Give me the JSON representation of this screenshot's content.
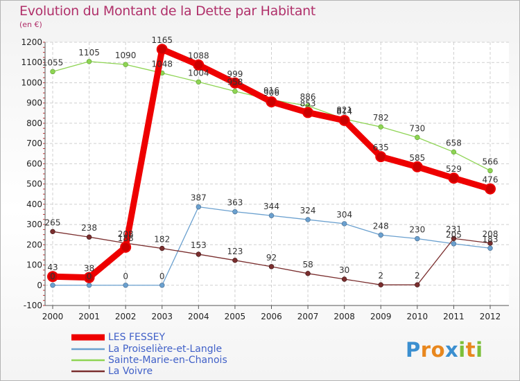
{
  "title": "Evolution du Montant de la Dette par Habitant",
  "subtitle": "(en €)",
  "logo": {
    "letters": [
      "P",
      "r",
      "o",
      "x",
      "i",
      "t",
      "i"
    ],
    "colors": [
      "#3b8fd0",
      "#e8871e",
      "#e8871e",
      "#3b8fd0",
      "#7cbf3a",
      "#e8871e",
      "#7cbf3a"
    ]
  },
  "chart_data": {
    "type": "line",
    "title": "Evolution du Montant de la Dette par Habitant",
    "ylabel": "(en €)",
    "x": [
      "2000",
      "2001",
      "2002",
      "2003",
      "2004",
      "2005",
      "2006",
      "2007",
      "2008",
      "2009",
      "2010",
      "2011",
      "2012"
    ],
    "ylim": [
      -100,
      1200
    ],
    "yticks": [
      "-100",
      "0",
      "100",
      "200",
      "300",
      "400",
      "500",
      "600",
      "700",
      "800",
      "900",
      "1000",
      "1100",
      "1200"
    ],
    "grid": "horizontal dashed",
    "legend_position": "bottom-left",
    "series": [
      {
        "name": "LES FESSEY",
        "color": "#ee0000",
        "values": [
          43,
          38,
          188,
          1165,
          1088,
          999,
          906,
          853,
          814,
          635,
          585,
          529,
          476
        ],
        "labels": [
          "43",
          "38",
          "188",
          "1165",
          "1088",
          "999",
          "906",
          "853",
          "814",
          "635",
          "585",
          "529",
          "476"
        ]
      },
      {
        "name": "La Proiselière-et-Langle",
        "color": "#6aa0cf",
        "values": [
          0,
          0,
          0,
          0,
          387,
          363,
          344,
          324,
          304,
          248,
          230,
          205,
          183
        ],
        "labels": [
          "0",
          "0",
          "0",
          "0",
          "387",
          "363",
          "344",
          "324",
          "304",
          "248",
          "230",
          "205",
          "183"
        ]
      },
      {
        "name": "Sainte-Marie-en-Chanois",
        "color": "#8ed453",
        "values": [
          1055,
          1105,
          1090,
          1048,
          1004,
          958,
          916,
          886,
          821,
          782,
          730,
          658,
          566
        ],
        "labels": [
          "1055",
          "1105",
          "1090",
          "1048",
          "1004",
          "958",
          "916",
          "886",
          "821",
          "782",
          "730",
          "658",
          "566"
        ]
      },
      {
        "name": "La Voivre",
        "color": "#7a2e2e",
        "values": [
          265,
          238,
          208,
          182,
          153,
          123,
          92,
          58,
          30,
          2,
          2,
          231,
          208
        ],
        "labels": [
          "265",
          "238",
          "208",
          "182",
          "153",
          "123",
          "92",
          "58",
          "30",
          "2",
          "2",
          "231",
          "208"
        ]
      }
    ]
  }
}
